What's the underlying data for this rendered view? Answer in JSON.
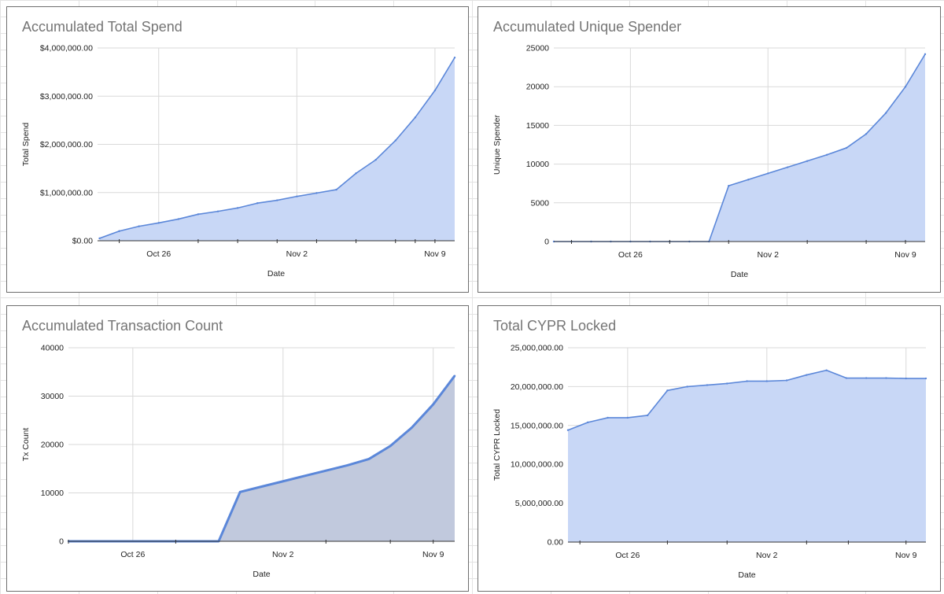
{
  "colors": {
    "line": "#5b87d9",
    "fill": "#c8d7f6",
    "fill_dark": "#c1c9dd",
    "grid": "#d9d9d9",
    "text": "#222222",
    "title": "#757575"
  },
  "chart_data": [
    {
      "type": "area",
      "title": "Accumulated Total Spend",
      "xlabel": "Date",
      "ylabel": "Total Spend",
      "x_ticks": [
        "Oct 26",
        "Nov 2",
        "Nov 9"
      ],
      "x_tick_positions": [
        3,
        10,
        17
      ],
      "x_minor_ticks": [
        1,
        5,
        7,
        9,
        11,
        13,
        15,
        16,
        17
      ],
      "xlim": [
        -0.1,
        18.0
      ],
      "ylim": [
        0,
        4000000
      ],
      "y_ticks": [
        0,
        1000000,
        2000000,
        3000000,
        4000000
      ],
      "y_tick_labels": [
        "$0.00",
        "$1,000,000.00",
        "$2,000,000.00",
        "$3,000,000.00",
        "$4,000,000.00"
      ],
      "series": [
        {
          "name": "Total Spend",
          "x": [
            0,
            1,
            2,
            3,
            4,
            5,
            6,
            7,
            8,
            9,
            10,
            11,
            12,
            13,
            14,
            15,
            16,
            17,
            18
          ],
          "y": [
            50000,
            200000,
            300000,
            370000,
            450000,
            550000,
            610000,
            680000,
            780000,
            840000,
            920000,
            990000,
            1060000,
            1400000,
            1680000,
            2080000,
            2560000,
            3120000,
            3800000
          ]
        }
      ]
    },
    {
      "type": "area",
      "title": "Accumulated Unique Spender",
      "xlabel": "Date",
      "ylabel": "Unique Spender",
      "x_ticks": [
        "Oct 26",
        "Nov 2",
        "Nov 9"
      ],
      "x_tick_positions": [
        3,
        10,
        17
      ],
      "x_minor_ticks": [
        0,
        5,
        8,
        12,
        15,
        17
      ],
      "xlim": [
        -0.9,
        18.0
      ],
      "ylim": [
        0,
        25000
      ],
      "y_ticks": [
        0,
        5000,
        10000,
        15000,
        20000,
        25000
      ],
      "y_tick_labels": [
        "0",
        "5000",
        "10000",
        "15000",
        "20000",
        "25000"
      ],
      "series": [
        {
          "name": "Unique Spender",
          "x": [
            -0.9,
            0,
            1,
            2,
            3,
            4,
            5,
            6,
            7,
            8,
            9,
            10,
            11,
            12,
            13,
            14,
            15,
            16,
            17,
            18
          ],
          "y": [
            0,
            0,
            0,
            0,
            0,
            0,
            0,
            0,
            0,
            7200,
            8000,
            8800,
            9600,
            10400,
            11200,
            12100,
            13900,
            16600,
            20000,
            24200
          ]
        }
      ]
    },
    {
      "type": "area",
      "title": "Accumulated Transaction Count",
      "xlabel": "Date",
      "ylabel": "Tx Count",
      "x_ticks": [
        "Oct 26",
        "Nov 2",
        "Nov 9"
      ],
      "x_tick_positions": [
        3,
        10,
        17
      ],
      "x_minor_ticks": [
        0,
        5,
        12,
        15,
        17
      ],
      "xlim": [
        0,
        18.0
      ],
      "ylim": [
        0,
        40000
      ],
      "y_ticks": [
        0,
        10000,
        20000,
        30000,
        40000
      ],
      "y_tick_labels": [
        "0",
        "10000",
        "20000",
        "30000",
        "40000"
      ],
      "series": [
        {
          "name": "Tx Count",
          "x": [
            0,
            1,
            2,
            3,
            4,
            5,
            6,
            7,
            8,
            9,
            10,
            11,
            12,
            13,
            14,
            15,
            16,
            17,
            18
          ],
          "y": [
            0,
            0,
            0,
            0,
            0,
            0,
            0,
            0,
            10200,
            11300,
            12400,
            13500,
            14600,
            15700,
            17000,
            19700,
            23500,
            28300,
            34200
          ]
        }
      ]
    },
    {
      "type": "area",
      "title": "Total CYPR Locked",
      "xlabel": "Date",
      "ylabel": "Total CYPR Locked",
      "x_ticks": [
        "Oct 26",
        "Nov 2",
        "Nov 9"
      ],
      "x_tick_positions": [
        3,
        10,
        17
      ],
      "x_minor_ticks": [
        0.6,
        5,
        8,
        12,
        14.1,
        17
      ],
      "xlim": [
        0,
        18.0
      ],
      "ylim": [
        0,
        25000000
      ],
      "y_ticks": [
        0,
        5000000,
        10000000,
        15000000,
        20000000,
        25000000
      ],
      "y_tick_labels": [
        "0.00",
        "5,000,000.00",
        "10,000,000.00",
        "15,000,000.00",
        "20,000,000.00",
        "25,000,000.00"
      ],
      "series": [
        {
          "name": "Total CYPR Locked",
          "x": [
            0,
            1,
            2,
            3,
            4,
            5,
            6,
            7,
            8,
            9,
            10,
            11,
            12,
            13,
            14,
            15,
            16,
            17,
            18
          ],
          "y": [
            14400000,
            15400000,
            16000000,
            16000000,
            16300000,
            19500000,
            20000000,
            20200000,
            20400000,
            20700000,
            20700000,
            20800000,
            21500000,
            22100000,
            21100000,
            21100000,
            21100000,
            21050000,
            21050000
          ]
        }
      ]
    }
  ]
}
